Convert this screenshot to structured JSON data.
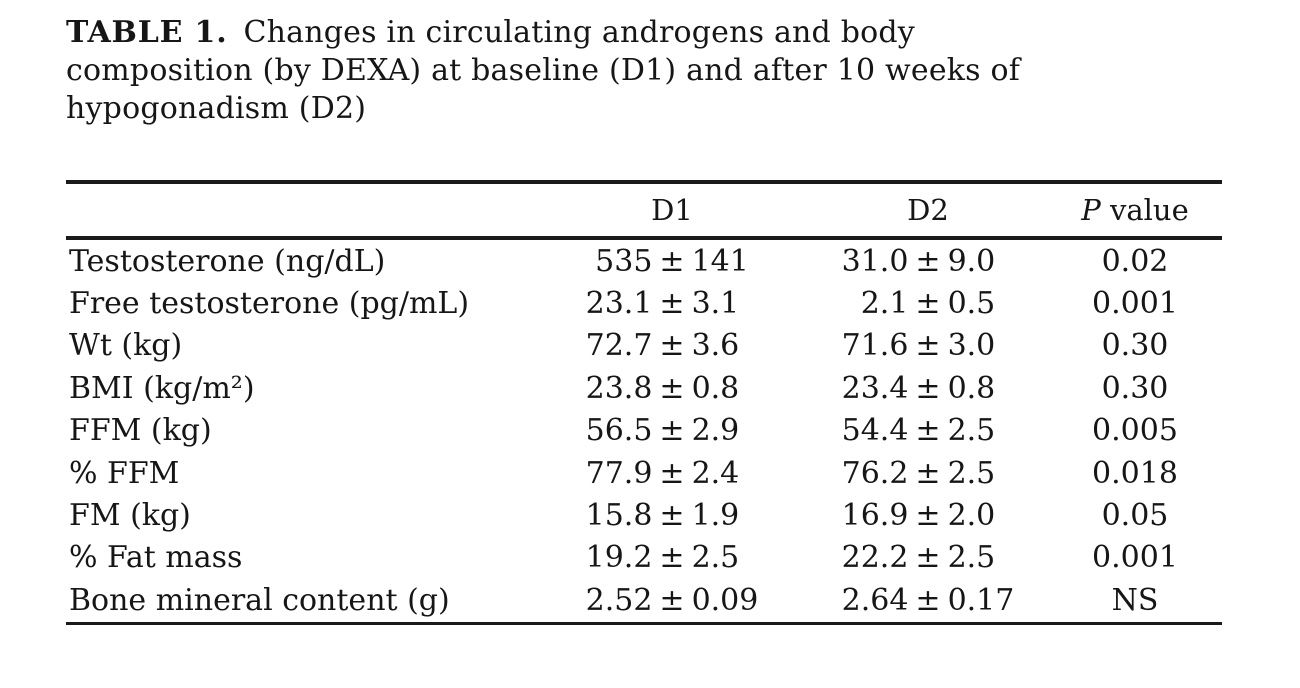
{
  "caption": {
    "label": "TABLE 1.",
    "line1": "Changes in circulating androgens and body",
    "line2": "composition (by DEXA) at baseline (D1) and after 10 weeks of",
    "line3": "hypogonadism (D2)"
  },
  "table": {
    "pm": "±",
    "headers": {
      "col_d1": "D1",
      "col_d2": "D2",
      "p_label_italic": "P",
      "p_label_rest": " value"
    },
    "rows": [
      {
        "label": "Testosterone (ng/dL)",
        "d1": {
          "mean": "535",
          "sd": "141"
        },
        "d2": {
          "mean": "31.0",
          "sd": "9.0"
        },
        "p": "0.02"
      },
      {
        "label": "Free testosterone (pg/mL)",
        "d1": {
          "mean": "23.1",
          "sd": "3.1"
        },
        "d2": {
          "mean": "2.1",
          "sd": "0.5"
        },
        "p": "0.001"
      },
      {
        "label": "Wt (kg)",
        "d1": {
          "mean": "72.7",
          "sd": "3.6"
        },
        "d2": {
          "mean": "71.6",
          "sd": "3.0"
        },
        "p": "0.30"
      },
      {
        "label": "BMI (kg/m²)",
        "d1": {
          "mean": "23.8",
          "sd": "0.8"
        },
        "d2": {
          "mean": "23.4",
          "sd": "0.8"
        },
        "p": "0.30"
      },
      {
        "label": "FFM (kg)",
        "d1": {
          "mean": "56.5",
          "sd": "2.9"
        },
        "d2": {
          "mean": "54.4",
          "sd": "2.5"
        },
        "p": "0.005"
      },
      {
        "label": "% FFM",
        "d1": {
          "mean": "77.9",
          "sd": "2.4"
        },
        "d2": {
          "mean": "76.2",
          "sd": "2.5"
        },
        "p": "0.018"
      },
      {
        "label": "FM (kg)",
        "d1": {
          "mean": "15.8",
          "sd": "1.9"
        },
        "d2": {
          "mean": "16.9",
          "sd": "2.0"
        },
        "p": "0.05"
      },
      {
        "label": "% Fat mass",
        "d1": {
          "mean": "19.2",
          "sd": "2.5"
        },
        "d2": {
          "mean": "22.2",
          "sd": "2.5"
        },
        "p": "0.001"
      },
      {
        "label": "Bone mineral content (g)",
        "d1": {
          "mean": "2.52",
          "sd": "0.09"
        },
        "d2": {
          "mean": "2.64",
          "sd": "0.17"
        },
        "p": "NS"
      }
    ]
  },
  "chart_data": {
    "type": "table",
    "title": "TABLE 1. Changes in circulating androgens and body composition (by DEXA) at baseline (D1) and after 10 weeks of hypogonadism (D2)",
    "columns": [
      "",
      "D1",
      "D2",
      "P value"
    ],
    "rows": [
      [
        "Testosterone (ng/dL)",
        "535 ± 141",
        "31.0 ± 9.0",
        "0.02"
      ],
      [
        "Free testosterone (pg/mL)",
        "23.1 ± 3.1",
        "2.1 ± 0.5",
        "0.001"
      ],
      [
        "Wt (kg)",
        "72.7 ± 3.6",
        "71.6 ± 3.0",
        "0.30"
      ],
      [
        "BMI (kg/m²)",
        "23.8 ± 0.8",
        "23.4 ± 0.8",
        "0.30"
      ],
      [
        "FFM (kg)",
        "56.5 ± 2.9",
        "54.4 ± 2.5",
        "0.005"
      ],
      [
        "% FFM",
        "77.9 ± 2.4",
        "76.2 ± 2.5",
        "0.018"
      ],
      [
        "FM (kg)",
        "15.8 ± 1.9",
        "16.9 ± 2.0",
        "0.05"
      ],
      [
        "% Fat mass",
        "19.2 ± 2.5",
        "22.2 ± 2.5",
        "0.001"
      ],
      [
        "Bone mineral content (g)",
        "2.52 ± 0.09",
        "2.64 ± 0.17",
        "NS"
      ]
    ]
  }
}
